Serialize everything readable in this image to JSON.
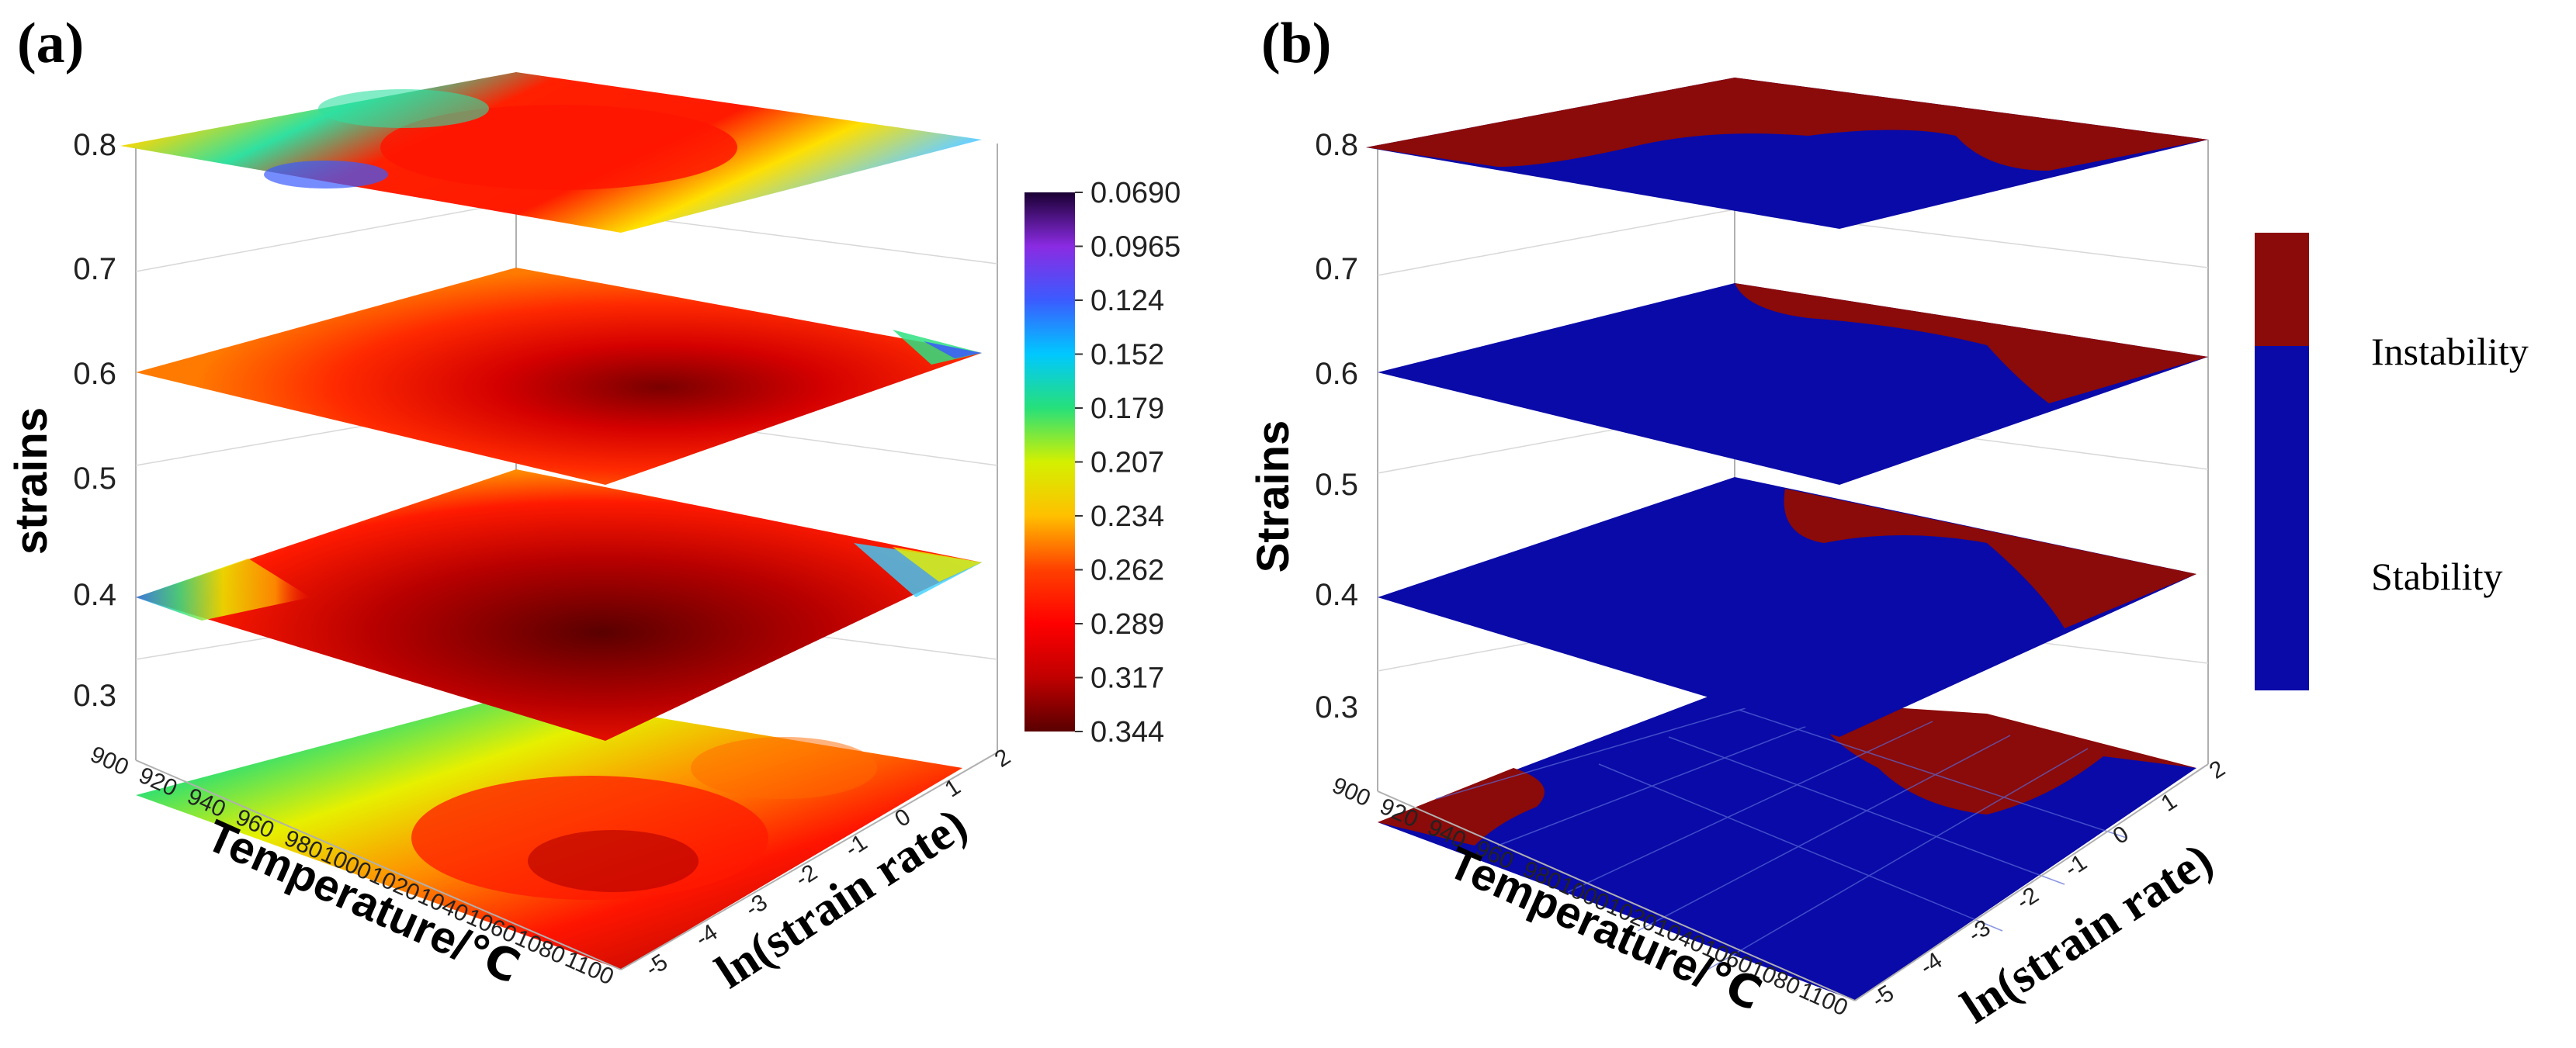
{
  "chart_data": [
    {
      "type": "heatmap",
      "panel_label": "(a)",
      "subtype": "stacked 3D contour slices",
      "xlabel": "Temperature/℃",
      "ylabel": "ln(strain rate)",
      "zlabel": "strains",
      "temperature_ticks": [
        "900",
        "920",
        "940",
        "960",
        "980",
        "1000",
        "1020",
        "1040",
        "1060",
        "1080",
        "1100"
      ],
      "strain_rate_ticks": [
        "-5",
        "-4",
        "-3",
        "-2",
        "-1",
        "0",
        "1",
        "2"
      ],
      "z_ticks": [
        "0.3",
        "0.4",
        "0.5",
        "0.6",
        "0.7",
        "0.8"
      ],
      "z_range": [
        0.25,
        0.8
      ],
      "slices": [
        0.2,
        0.4,
        0.6,
        0.8
      ],
      "colorbar": {
        "levels": [
          "0.0690",
          "0.0965",
          "0.124",
          "0.152",
          "0.179",
          "0.207",
          "0.234",
          "0.262",
          "0.289",
          "0.317",
          "0.344"
        ],
        "colors": [
          "#1a0033",
          "#8a2be2",
          "#3b5bff",
          "#00c8ff",
          "#26e07a",
          "#d4f000",
          "#ffc000",
          "#ff4000",
          "#ff0000",
          "#c00000",
          "#5a0000"
        ]
      }
    },
    {
      "type": "heatmap",
      "panel_label": "(b)",
      "subtype": "stacked 3D instability map slices",
      "xlabel": "Temperature/℃",
      "ylabel": "ln(strain rate)",
      "zlabel": "Strains",
      "temperature_ticks": [
        "900",
        "920",
        "940",
        "960",
        "980",
        "1000",
        "1020",
        "1040",
        "1060",
        "1080",
        "1100"
      ],
      "strain_rate_ticks": [
        "-5",
        "-4",
        "-3",
        "-2",
        "-1",
        "0",
        "1",
        "2"
      ],
      "z_ticks": [
        "0.3",
        "0.4",
        "0.5",
        "0.6",
        "0.7",
        "0.8"
      ],
      "z_range": [
        0.25,
        0.8
      ],
      "slices": [
        0.2,
        0.4,
        0.6,
        0.8
      ],
      "legend": [
        {
          "label": "Instability",
          "color": "#8b0a0a"
        },
        {
          "label": "Stability",
          "color": "#0a0aa8"
        }
      ]
    }
  ]
}
